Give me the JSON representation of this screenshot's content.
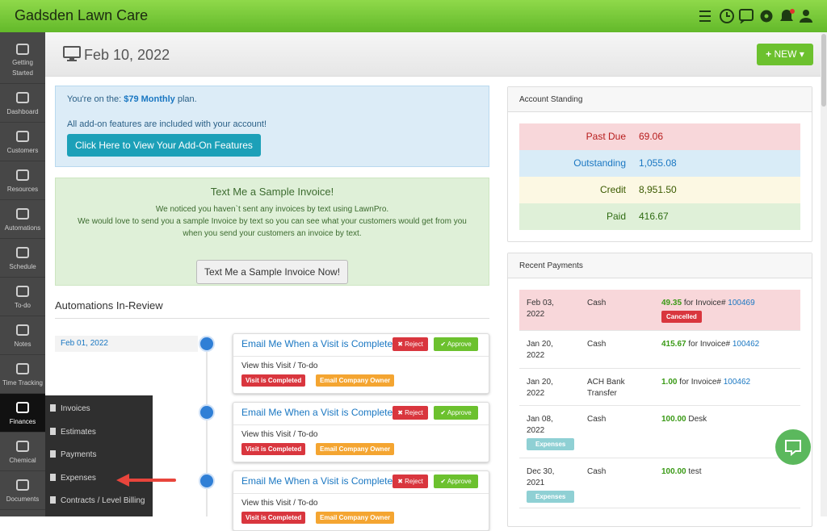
{
  "app_title": "Gadsden Lawn Care",
  "sidebar": [
    "Getting Started",
    "Dashboard",
    "Customers",
    "Resources",
    "Automations",
    "Schedule",
    "To-do",
    "Notes",
    "Time Tracking",
    "Finances",
    "Chemical",
    "Documents"
  ],
  "finance_menu": [
    "Invoices",
    "Estimates",
    "Payments",
    "Expenses",
    "Contracts / Level Billing"
  ],
  "header": {
    "date": "Feb 10, 2022",
    "new_button": "NEW"
  },
  "plan_notice": {
    "prefix": "You're on the:",
    "plan": "$79 Monthly",
    "suffix": "plan.",
    "addons": "All add-on features are included with your account!",
    "button": "Click Here to View Your Add-On Features"
  },
  "sample_invoice": {
    "title": "Text Me a Sample Invoice!",
    "lines": [
      "We noticed you haven`t sent any invoices by text using LawnPro.",
      "We would love to send you a sample Invoice by text so you can see what your customers would get from you when you send your customers an invoice by text."
    ],
    "button": "Text Me a Sample Invoice Now!"
  },
  "automations": {
    "title": "Automations In-Review",
    "items": [
      {
        "date": "Feb 01, 2022",
        "title": "Email Me When a Visit is Complete",
        "reject": "Reject",
        "approve": "Approve",
        "link": "View this Visit / To-do",
        "badges": [
          "Visit is Completed",
          "Email Company Owner"
        ]
      },
      {
        "title": "Email Me When a Visit is Complete",
        "reject": "Reject",
        "approve": "Approve",
        "link": "View this Visit / To-do",
        "badges": [
          "Visit is Completed",
          "Email Company Owner"
        ]
      },
      {
        "title": "Email Me When a Visit is Complete",
        "reject": "Reject",
        "approve": "Approve",
        "link": "View this Visit / To-do",
        "badges": [
          "Visit is Completed",
          "Email Company Owner"
        ]
      }
    ]
  },
  "account_standing": {
    "title": "Account Standing",
    "rows": [
      {
        "label": "Past Due",
        "value": "69.06"
      },
      {
        "label": "Outstanding",
        "value": "1,055.08"
      },
      {
        "label": "Credit",
        "value": "8,951.50"
      },
      {
        "label": "Paid",
        "value": "416.67"
      }
    ]
  },
  "recent_payments": {
    "title": "Recent Payments",
    "rows": [
      {
        "date": "Feb 03, 2022",
        "method": "Cash",
        "amount": "49.35",
        "note": "for Invoice#",
        "invoice": "100469",
        "badge": "Cancelled"
      },
      {
        "date": "Jan 20, 2022",
        "method": "Cash",
        "amount": "415.67",
        "note": "for Invoice#",
        "invoice": "100462"
      },
      {
        "date": "Jan 20, 2022",
        "method": "ACH Bank Transfer",
        "amount": "1.00",
        "note": "for Invoice#",
        "invoice": "100462"
      },
      {
        "date": "Jan 08, 2022",
        "method": "Cash",
        "amount": "100.00",
        "note": "Desk",
        "badge": "Expenses"
      },
      {
        "date": "Dec 30, 2021",
        "method": "Cash",
        "amount": "100.00",
        "note": "test",
        "badge": "Expenses"
      }
    ]
  }
}
